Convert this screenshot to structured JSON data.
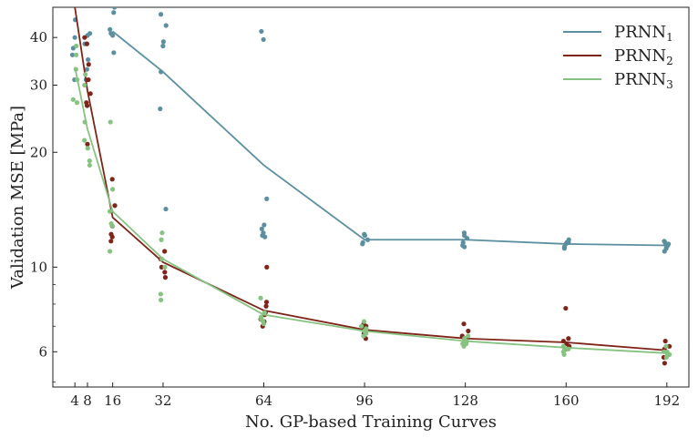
{
  "chart_data": {
    "type": "line",
    "xlabel": "No. GP-based Training Curves",
    "ylabel": "Validation MSE [MPa]",
    "yscale": "log",
    "xlim": [
      -3,
      199
    ],
    "ylim": [
      4.85,
      48
    ],
    "x_ticks": [
      4,
      8,
      16,
      32,
      64,
      96,
      128,
      160,
      192
    ],
    "y_ticks": [
      6,
      10,
      20,
      30,
      40
    ],
    "legend_position": "top-right",
    "series": [
      {
        "name": "PRNN",
        "subscript": "1",
        "color": "#5b8fa0",
        "line": {
          "x": [
            16,
            32,
            64,
            96,
            128,
            160,
            192
          ],
          "y": [
            41.5,
            32.5,
            18.5,
            11.8,
            11.8,
            11.5,
            11.4
          ]
        },
        "points": {
          "x": [
            4,
            4,
            4,
            4,
            4,
            8,
            8,
            8,
            8,
            8,
            8,
            16,
            16,
            16,
            16,
            16,
            16,
            32,
            32,
            32,
            32,
            32,
            32,
            32,
            64,
            64,
            64,
            64,
            64,
            64,
            64,
            64,
            96,
            96,
            96,
            96,
            96,
            128,
            128,
            128,
            128,
            128,
            128,
            160,
            160,
            160,
            160,
            160,
            160,
            192,
            192,
            192,
            192,
            192,
            192,
            192
          ],
          "y": [
            40,
            44.5,
            36,
            37.5,
            31,
            40.5,
            38.5,
            41,
            35,
            33,
            31,
            48,
            46.5,
            42,
            40.5,
            41,
            36.5,
            46,
            39,
            38,
            32.5,
            26,
            14.2,
            43,
            41.5,
            39.5,
            15.1,
            12.6,
            12.3,
            12.9,
            12,
            12.1,
            11.5,
            11.8,
            12.2,
            11.6,
            12.1,
            12.3,
            11.6,
            11.9,
            12.1,
            11.3,
            11.4,
            11.8,
            11.2,
            11.6,
            11.5,
            11.3,
            11.6,
            11.2,
            11.5,
            11.4,
            11,
            11.6,
            11.3,
            11.7
          ]
        }
      },
      {
        "name": "PRNN",
        "subscript": "2",
        "color": "#7f2418",
        "line": {
          "x": [
            4,
            8,
            16,
            32,
            64,
            96,
            128,
            160,
            192
          ],
          "y": [
            48,
            29,
            13.5,
            10.3,
            7.7,
            6.85,
            6.5,
            6.35,
            6.05
          ]
        },
        "points": {
          "x": [
            8,
            8,
            8,
            8,
            8,
            8,
            8,
            8,
            16,
            16,
            16,
            16,
            16,
            16,
            32,
            32,
            32,
            32,
            32,
            64,
            64,
            64,
            64,
            64,
            64,
            64,
            64,
            96,
            96,
            96,
            96,
            96,
            128,
            128,
            128,
            128,
            128,
            160,
            160,
            160,
            160,
            160,
            160,
            192,
            192,
            192,
            192,
            192,
            192,
            192
          ],
          "y": [
            40,
            38.5,
            34,
            31,
            28.5,
            27,
            26.5,
            21,
            17,
            14.5,
            12.8,
            12,
            12.2,
            11.7,
            11,
            10.5,
            10,
            9.7,
            9.4,
            10,
            8.1,
            7.9,
            7.6,
            7.5,
            7.2,
            7.3,
            7,
            7.1,
            6.9,
            6.7,
            6.5,
            7,
            7.1,
            6.8,
            6.6,
            6.5,
            6.3,
            7.8,
            6.4,
            6.2,
            6.1,
            6.5,
            6.3,
            6.0,
            6.1,
            5.9,
            6.2,
            6.4,
            5.8,
            5.6
          ]
        }
      },
      {
        "name": "PRNN",
        "subscript": "3",
        "color": "#86c280",
        "line": {
          "x": [
            4,
            8,
            16,
            32,
            64,
            96,
            128,
            160,
            192
          ],
          "y": [
            33.5,
            23,
            14,
            10.5,
            7.5,
            6.8,
            6.4,
            6.15,
            5.95
          ]
        },
        "points": {
          "x": [
            4,
            4,
            4,
            4,
            4,
            4,
            8,
            8,
            8,
            8,
            8,
            8,
            8,
            16,
            16,
            16,
            16,
            16,
            16,
            32,
            32,
            32,
            32,
            32,
            32,
            64,
            64,
            64,
            64,
            64,
            64,
            96,
            96,
            96,
            96,
            96,
            96,
            128,
            128,
            128,
            128,
            128,
            128,
            160,
            160,
            160,
            160,
            160,
            192,
            192,
            192,
            192,
            192,
            192
          ],
          "y": [
            38,
            36,
            33,
            31,
            27.5,
            27,
            32,
            30,
            24,
            21.5,
            20.5,
            19,
            18.5,
            24,
            16,
            14,
            13,
            12.8,
            11,
            12.3,
            11.8,
            10.5,
            10,
            8.5,
            8.2,
            8.3,
            7.6,
            7.4,
            7.2,
            7.3,
            7.1,
            7.2,
            7.0,
            6.9,
            6.8,
            6.7,
            6.6,
            6.6,
            6.4,
            6.3,
            6.2,
            6.5,
            6.3,
            6.1,
            6.0,
            6.2,
            5.9,
            6.1,
            6.0,
            5.9,
            5.8,
            6.2,
            6.0,
            5.9
          ]
        }
      }
    ]
  }
}
